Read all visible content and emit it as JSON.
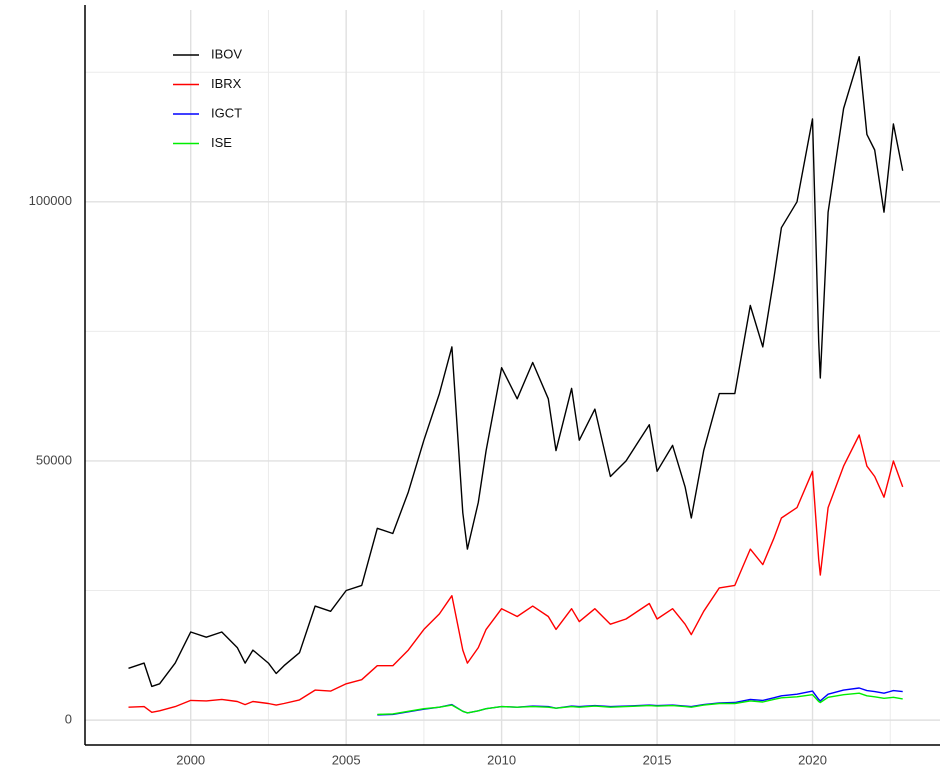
{
  "chart_data": {
    "type": "line",
    "x": [
      1998.0,
      1998.5,
      1998.75,
      1999.0,
      1999.5,
      2000.0,
      2000.5,
      2001.0,
      2001.5,
      2001.75,
      2002.0,
      2002.5,
      2002.75,
      2003.0,
      2003.5,
      2004.0,
      2004.5,
      2005.0,
      2005.5,
      2006.0,
      2006.5,
      2007.0,
      2007.5,
      2008.0,
      2008.4,
      2008.75,
      2008.9,
      2009.25,
      2009.5,
      2010.0,
      2010.5,
      2011.0,
      2011.5,
      2011.75,
      2012.25,
      2012.5,
      2013.0,
      2013.5,
      2014.0,
      2014.75,
      2015.0,
      2015.5,
      2015.9,
      2016.1,
      2016.5,
      2017.0,
      2017.5,
      2018.0,
      2018.4,
      2018.75,
      2019.0,
      2019.5,
      2020.0,
      2020.2,
      2020.25,
      2020.5,
      2021.0,
      2021.5,
      2021.75,
      2022.0,
      2022.3,
      2022.6,
      2022.9
    ],
    "series": [
      {
        "name": "IBOV",
        "color": "#000000",
        "values": [
          10000,
          11000,
          6500,
          7000,
          11000,
          17000,
          16000,
          17000,
          14000,
          11000,
          13500,
          11000,
          9000,
          10500,
          13000,
          22000,
          21000,
          25000,
          26000,
          37000,
          36000,
          44000,
          54000,
          63000,
          72000,
          40000,
          33000,
          42000,
          52000,
          68000,
          62000,
          69000,
          62000,
          52000,
          64000,
          54000,
          60000,
          47000,
          50000,
          57000,
          48000,
          53000,
          45000,
          39000,
          52000,
          63000,
          63000,
          80000,
          72000,
          85000,
          95000,
          100000,
          116000,
          73000,
          66000,
          98000,
          118000,
          128000,
          113000,
          110000,
          98000,
          115000,
          106000
        ]
      },
      {
        "name": "IBRX",
        "color": "#ff0000",
        "values": [
          2500,
          2600,
          1500,
          1800,
          2600,
          3800,
          3700,
          4000,
          3600,
          3000,
          3600,
          3200,
          2900,
          3200,
          3900,
          5800,
          5600,
          7000,
          7800,
          10500,
          10500,
          13500,
          17500,
          20500,
          24000,
          13500,
          11000,
          14000,
          17500,
          21500,
          20000,
          22000,
          20000,
          17500,
          21500,
          19000,
          21500,
          18500,
          19500,
          22500,
          19500,
          21500,
          18500,
          16500,
          21000,
          25500,
          26000,
          33000,
          30000,
          35000,
          39000,
          41000,
          48000,
          31000,
          28000,
          41000,
          49000,
          55000,
          49000,
          47000,
          43000,
          50000,
          45000
        ]
      },
      {
        "name": "IGCT",
        "color": "#0000ff",
        "values": [
          null,
          null,
          null,
          null,
          null,
          null,
          null,
          null,
          null,
          null,
          null,
          null,
          null,
          null,
          null,
          null,
          null,
          null,
          null,
          1000,
          1100,
          1600,
          2100,
          2500,
          3000,
          1700,
          1400,
          1800,
          2200,
          2600,
          2500,
          2700,
          2600,
          2300,
          2700,
          2600,
          2800,
          2600,
          2700,
          2900,
          2800,
          2900,
          2700,
          2600,
          3000,
          3300,
          3400,
          4000,
          3800,
          4300,
          4700,
          5000,
          5600,
          4000,
          3700,
          5000,
          5800,
          6200,
          5700,
          5500,
          5200,
          5700,
          5500
        ]
      },
      {
        "name": "ISE",
        "color": "#00ee00",
        "values": [
          null,
          null,
          null,
          null,
          null,
          null,
          null,
          null,
          null,
          null,
          null,
          null,
          null,
          null,
          null,
          null,
          null,
          null,
          null,
          1100,
          1200,
          1700,
          2200,
          2500,
          2900,
          1700,
          1400,
          1800,
          2200,
          2600,
          2500,
          2600,
          2500,
          2300,
          2600,
          2500,
          2700,
          2500,
          2600,
          2800,
          2700,
          2800,
          2600,
          2500,
          2900,
          3200,
          3200,
          3700,
          3500,
          4000,
          4300,
          4500,
          4900,
          3600,
          3400,
          4400,
          4900,
          5200,
          4700,
          4500,
          4200,
          4400,
          4100
        ]
      }
    ],
    "xlim": [
      1996.6,
      2024.1
    ],
    "xticks": [
      2000,
      2005,
      2010,
      2015,
      2020
    ],
    "xticks_minor": [
      2002.5,
      2007.5,
      2012.5,
      2017.5,
      2022.5
    ],
    "ylim": [
      -4800,
      137000
    ],
    "yticks": [
      0,
      50000,
      100000
    ],
    "yticks_minor": [
      25000,
      75000,
      125000
    ],
    "grid": true,
    "legend": "top-left"
  }
}
